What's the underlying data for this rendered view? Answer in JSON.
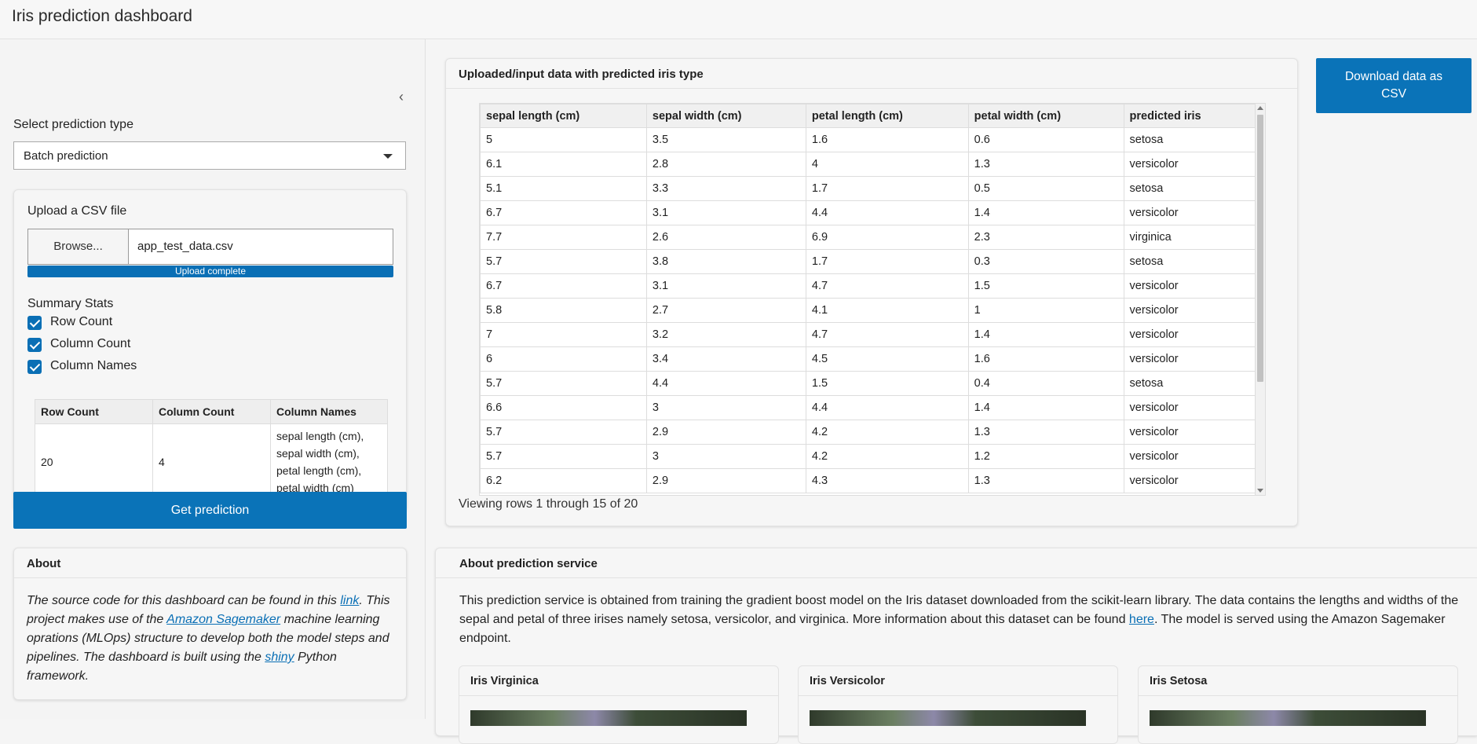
{
  "app": {
    "title": "Iris prediction dashboard"
  },
  "sidebar": {
    "prediction_type_label": "Select prediction type",
    "prediction_type_value": "Batch prediction",
    "upload": {
      "label": "Upload a CSV file",
      "browse_label": "Browse...",
      "filename": "app_test_data.csv",
      "progress_label": "Upload complete",
      "progress_fraction": 1.0
    },
    "summary_stats": {
      "label": "Summary Stats",
      "options": [
        {
          "label": "Row Count",
          "checked": true
        },
        {
          "label": "Column Count",
          "checked": true
        },
        {
          "label": "Column Names",
          "checked": true
        }
      ],
      "table": {
        "headers": [
          "Row Count",
          "Column Count",
          "Column Names"
        ],
        "row": [
          "20",
          "4",
          "sepal length (cm), sepal width (cm), petal length (cm), petal width (cm)"
        ]
      }
    },
    "get_prediction_label": "Get prediction",
    "about": {
      "title": "About",
      "t1": "The source code for this dashboard can be found in this ",
      "link1": "link",
      "t2": ". This project makes use of the ",
      "link2": "Amazon Sagemaker",
      "t3": " machine learning oprations (MLOps) structure to develop both the model steps and pipelines. The dashboard is built using the ",
      "link3": "shiny",
      "t4": " Python framework."
    }
  },
  "main": {
    "card_title": "Uploaded/input data with predicted iris type",
    "columns": [
      "sepal length (cm)",
      "sepal width (cm)",
      "petal length (cm)",
      "petal width (cm)",
      "predicted iris"
    ],
    "rows": [
      [
        "5",
        "3.5",
        "1.6",
        "0.6",
        "setosa"
      ],
      [
        "6.1",
        "2.8",
        "4",
        "1.3",
        "versicolor"
      ],
      [
        "5.1",
        "3.3",
        "1.7",
        "0.5",
        "setosa"
      ],
      [
        "6.7",
        "3.1",
        "4.4",
        "1.4",
        "versicolor"
      ],
      [
        "7.7",
        "2.6",
        "6.9",
        "2.3",
        "virginica"
      ],
      [
        "5.7",
        "3.8",
        "1.7",
        "0.3",
        "setosa"
      ],
      [
        "6.7",
        "3.1",
        "4.7",
        "1.5",
        "versicolor"
      ],
      [
        "5.8",
        "2.7",
        "4.1",
        "1",
        "versicolor"
      ],
      [
        "7",
        "3.2",
        "4.7",
        "1.4",
        "versicolor"
      ],
      [
        "6",
        "3.4",
        "4.5",
        "1.6",
        "versicolor"
      ],
      [
        "5.7",
        "4.4",
        "1.5",
        "0.4",
        "setosa"
      ],
      [
        "6.6",
        "3",
        "4.4",
        "1.4",
        "versicolor"
      ],
      [
        "5.7",
        "2.9",
        "4.2",
        "1.3",
        "versicolor"
      ],
      [
        "5.7",
        "3",
        "4.2",
        "1.2",
        "versicolor"
      ],
      [
        "6.2",
        "2.9",
        "4.3",
        "1.3",
        "versicolor"
      ]
    ],
    "viewing_text": "Viewing rows 1 through 15 of 20",
    "download_label_line1": "Download data as",
    "download_label_line2": "CSV"
  },
  "service": {
    "title": "About prediction service",
    "t1": "This prediction service is obtained from training the gradient boost model on the Iris dataset downloaded from the scikit-learn library. The data contains the lengths and widths of the sepal and petal of three irises namely setosa, versicolor, and virginica. More information about this dataset can be found ",
    "link": "here",
    "t2": ". The model is served using the Amazon Sagemaker endpoint.",
    "cards": [
      "Iris Virginica",
      "Iris Versicolor",
      "Iris Setosa"
    ]
  },
  "colors": {
    "primary": "#0a73b8",
    "link": "#0a6fb5"
  },
  "icons": {
    "collapse": "chevron-left-icon",
    "dropdown": "chevron-down-icon",
    "checkbox": "checkmark-icon"
  }
}
